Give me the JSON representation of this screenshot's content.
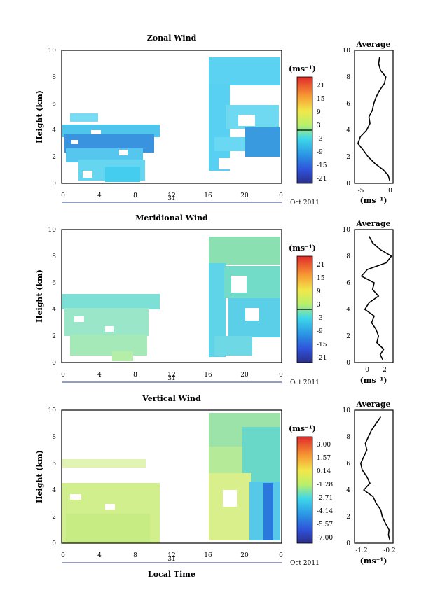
{
  "xlabel": "Local Time",
  "date_label": "Oct 2011",
  "day_label": "31",
  "colorbar_unit": "(ms⁻¹)",
  "profile_unit": "(ms⁻¹)",
  "profile_title": "Average",
  "chart_data": [
    {
      "type": "heatmap",
      "title": "Zonal Wind",
      "ylabel": "Height (km)",
      "x_ticks": [
        "0",
        "4",
        "8",
        "12",
        "16",
        "20",
        "0"
      ],
      "y_ticks": [
        "0",
        "2",
        "4",
        "6",
        "8",
        "10"
      ],
      "ylim": [
        0,
        10
      ],
      "colorbar_ticks": [
        "21",
        "15",
        "9",
        "3",
        "-3",
        "-9",
        "-15",
        "-21"
      ],
      "colorbar_range": [
        -24,
        24
      ],
      "profile": {
        "title": "Average",
        "x_ticks": [
          "-5",
          "0"
        ],
        "xlim": [
          -7,
          1
        ],
        "height_km": [
          0.2,
          0.6,
          1.0,
          1.5,
          2.0,
          2.5,
          3.0,
          3.5,
          4.0,
          4.5,
          5.0,
          5.5,
          6.0,
          6.5,
          7.0,
          7.5,
          8.0,
          8.5,
          9.0,
          9.5
        ],
        "values": [
          0.3,
          0.0,
          -1.0,
          -2.8,
          -4.2,
          -5.2,
          -6.3,
          -5.8,
          -4.5,
          -3.8,
          -4.0,
          -3.3,
          -3.0,
          -2.5,
          -1.8,
          -0.8,
          -0.5,
          -1.6,
          -2.0,
          -1.8
        ]
      }
    },
    {
      "type": "heatmap",
      "title": "Meridional Wind",
      "ylabel": "Height (km)",
      "x_ticks": [
        "0",
        "4",
        "8",
        "12",
        "16",
        "20",
        "0"
      ],
      "y_ticks": [
        "0",
        "2",
        "4",
        "6",
        "8",
        "10"
      ],
      "ylim": [
        0,
        10
      ],
      "colorbar_ticks": [
        "21",
        "15",
        "9",
        "3",
        "-3",
        "-9",
        "-15",
        "-21"
      ],
      "colorbar_range": [
        -24,
        24
      ],
      "profile": {
        "title": "Average",
        "x_ticks": [
          "0",
          "2"
        ],
        "xlim": [
          -1.5,
          3
        ],
        "height_km": [
          0.2,
          0.6,
          1.0,
          1.5,
          2.0,
          2.5,
          3.0,
          3.5,
          4.0,
          4.5,
          5.0,
          5.5,
          6.0,
          6.5,
          7.0,
          7.5,
          8.0,
          8.5,
          9.0,
          9.5
        ],
        "values": [
          1.8,
          1.5,
          1.9,
          1.1,
          1.3,
          1.0,
          0.5,
          0.8,
          -0.3,
          0.2,
          1.3,
          0.6,
          0.8,
          -0.7,
          0.0,
          2.2,
          2.8,
          1.5,
          0.6,
          0.2
        ]
      }
    },
    {
      "type": "heatmap",
      "title": "Vertical Wind",
      "ylabel": "Height (km)",
      "x_ticks": [
        "0",
        "4",
        "8",
        "12",
        "16",
        "20",
        "0"
      ],
      "y_ticks": [
        "0",
        "2",
        "4",
        "6",
        "8",
        "10"
      ],
      "ylim": [
        0,
        10
      ],
      "colorbar_ticks": [
        "3.00",
        "1.57",
        "0.14",
        "-1.28",
        "-2.71",
        "-4.14",
        "-5.57",
        "-7.00"
      ],
      "colorbar_range": [
        -7.71,
        3.71
      ],
      "profile": {
        "title": "Average",
        "x_ticks": [
          "-1.2",
          "-0.2"
        ],
        "xlim": [
          -1.4,
          -0.15
        ],
        "height_km": [
          0.2,
          0.6,
          1.0,
          1.5,
          2.0,
          2.5,
          3.0,
          3.5,
          4.0,
          4.5,
          5.0,
          5.5,
          6.0,
          6.5,
          7.0,
          7.5,
          8.0,
          8.5,
          9.0,
          9.5
        ],
        "values": [
          -0.25,
          -0.3,
          -0.28,
          -0.4,
          -0.5,
          -0.55,
          -0.7,
          -0.8,
          -1.1,
          -0.9,
          -1.0,
          -1.15,
          -1.2,
          -1.1,
          -1.0,
          -1.05,
          -0.95,
          -0.85,
          -0.7,
          -0.55
        ]
      }
    }
  ]
}
